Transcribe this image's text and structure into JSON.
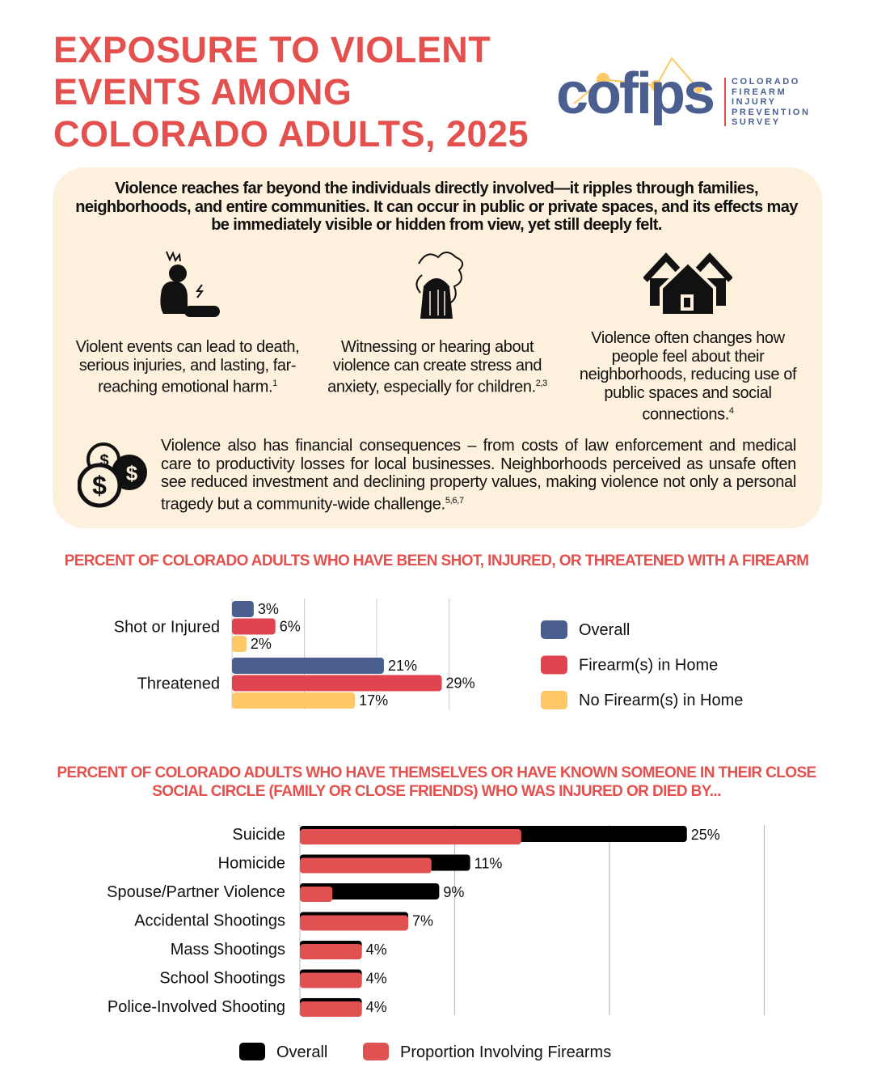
{
  "header": {
    "title_lines": [
      "EXPOSURE TO VIOLENT",
      "EVENTS AMONG",
      "COLORADO ADULTS, 2025"
    ],
    "logo": {
      "wordmark": "cofips",
      "subtitle_lines": [
        "COLORADO",
        "FIREARM",
        "INJURY",
        "PREVENTION",
        "SURVEY"
      ]
    }
  },
  "intro": {
    "text": "Violence reaches far beyond the individuals directly involved—it ripples through families, neighborhoods, and entire communities. It can occur in public or private spaces, and its effects may be immediately visible or hidden from view, yet still deeply felt.",
    "columns": [
      {
        "icon": "injured-person-icon",
        "text": "Violent events can lead to death, serious injuries, and lasting, far-reaching emotional harm.",
        "ref": "1"
      },
      {
        "icon": "anxious-person-icon",
        "text": "Witnessing or hearing about violence can create stress and anxiety, especially for children.",
        "ref": "2,3"
      },
      {
        "icon": "houses-icon",
        "text": "Violence often changes how people feel about their neighborhoods, reducing use of public spaces and social connections.",
        "ref": "4"
      }
    ],
    "financial": {
      "icon": "dollar-coins-icon",
      "text": "Violence also has financial consequences – from costs of law enforcement and medical care to productivity losses for local businesses. Neighborhoods perceived as unsafe often see reduced investment and declining property values, making violence not only a personal tragedy but a community-wide challenge.",
      "ref": "5,6,7"
    }
  },
  "chart_data": [
    {
      "type": "bar",
      "orientation": "horizontal",
      "title": "PERCENT OF COLORADO ADULTS WHO HAVE BEEN SHOT, INJURED, OR THREATENED WITH A FIREARM",
      "categories": [
        "Shot or Injured",
        "Threatened"
      ],
      "series": [
        {
          "name": "Overall",
          "color": "#4a5f8f",
          "values": [
            3,
            21
          ],
          "labels": [
            "3%",
            "21%"
          ]
        },
        {
          "name": "Firearm(s) in Home",
          "color": "#e0444f",
          "values": [
            6,
            29
          ],
          "labels": [
            "6%",
            "29%"
          ]
        },
        {
          "name": "No Firearm(s) in Home",
          "color": "#fdc865",
          "values": [
            2,
            17
          ],
          "labels": [
            "2%",
            "17%"
          ]
        }
      ],
      "xlim": [
        0,
        30
      ],
      "grid": true,
      "gridlines": [
        10,
        20,
        30
      ],
      "legend": "right"
    },
    {
      "type": "bar",
      "orientation": "horizontal",
      "overlapped": true,
      "title": "PERCENT OF COLORADO ADULTS WHO HAVE THEMSELVES OR HAVE KNOWN SOMEONE IN THEIR CLOSE SOCIAL CIRCLE (FAMILY OR CLOSE FRIENDS) WHO WAS INJURED OR DIED BY...",
      "categories": [
        "Suicide",
        "Homicide",
        "Spouse/Partner Violence",
        "Accidental Shootings",
        "Mass Shootings",
        "School Shootings",
        "Police-Involved Shooting"
      ],
      "series": [
        {
          "name": "Overall",
          "color": "#000000",
          "values": [
            25,
            11,
            9,
            7,
            4,
            4,
            4
          ],
          "labels": [
            "25%",
            "11%",
            "9%",
            "7%",
            "4%",
            "4%",
            "4%"
          ]
        },
        {
          "name": "Proportion Involving Firearms",
          "color": "#e05252",
          "values": [
            14.3,
            8.5,
            2.1,
            7,
            4,
            4,
            4
          ]
        }
      ],
      "xlim": [
        0,
        30
      ],
      "grid": true,
      "gridlines": [
        10,
        20,
        30
      ],
      "legend": "bottom"
    }
  ]
}
